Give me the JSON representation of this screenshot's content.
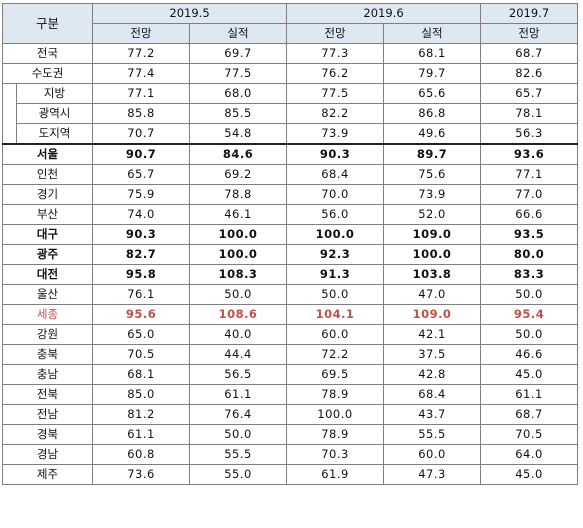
{
  "header": {
    "corner": "구분",
    "periods": [
      "2019.5",
      "2019.6",
      "2019.7"
    ],
    "sub": [
      "전망",
      "실적",
      "전망",
      "실적",
      "전망"
    ]
  },
  "rows": [
    {
      "label": "전국",
      "values": [
        "77.2",
        "69.7",
        "77.3",
        "68.1",
        "68.7"
      ]
    },
    {
      "label": "수도권",
      "values": [
        "77.4",
        "77.5",
        "76.2",
        "79.7",
        "82.6"
      ]
    },
    {
      "label": "지방",
      "values": [
        "77.1",
        "68.0",
        "77.5",
        "65.6",
        "65.7"
      ]
    },
    {
      "label": "광역시",
      "values": [
        "85.8",
        "85.5",
        "82.2",
        "86.8",
        "78.1"
      ]
    },
    {
      "label": "도지역",
      "values": [
        "70.7",
        "54.8",
        "73.9",
        "49.6",
        "56.3"
      ]
    },
    {
      "label": "서울",
      "values": [
        "90.7",
        "84.6",
        "90.3",
        "89.7",
        "93.6"
      ]
    },
    {
      "label": "인천",
      "values": [
        "65.7",
        "69.2",
        "68.4",
        "75.6",
        "77.1"
      ]
    },
    {
      "label": "경기",
      "values": [
        "75.9",
        "78.8",
        "70.0",
        "73.9",
        "77.0"
      ]
    },
    {
      "label": "부산",
      "values": [
        "74.0",
        "46.1",
        "56.0",
        "52.0",
        "66.6"
      ]
    },
    {
      "label": "대구",
      "values": [
        "90.3",
        "100.0",
        "100.0",
        "109.0",
        "93.5"
      ]
    },
    {
      "label": "광주",
      "values": [
        "82.7",
        "100.0",
        "92.3",
        "100.0",
        "80.0"
      ]
    },
    {
      "label": "대전",
      "values": [
        "95.8",
        "108.3",
        "91.3",
        "103.8",
        "83.3"
      ]
    },
    {
      "label": "울산",
      "values": [
        "76.1",
        "50.0",
        "50.0",
        "47.0",
        "50.0"
      ]
    },
    {
      "label": "세종",
      "values": [
        "95.6",
        "108.6",
        "104.1",
        "109.0",
        "95.4"
      ]
    },
    {
      "label": "강원",
      "values": [
        "65.0",
        "40.0",
        "60.0",
        "42.1",
        "50.0"
      ]
    },
    {
      "label": "충북",
      "values": [
        "70.5",
        "44.4",
        "72.2",
        "37.5",
        "46.6"
      ]
    },
    {
      "label": "충남",
      "values": [
        "68.1",
        "56.5",
        "69.5",
        "42.8",
        "45.0"
      ]
    },
    {
      "label": "전북",
      "values": [
        "85.0",
        "61.1",
        "78.9",
        "68.4",
        "61.1"
      ]
    },
    {
      "label": "전남",
      "values": [
        "81.2",
        "76.4",
        "100.0",
        "43.7",
        "68.7"
      ]
    },
    {
      "label": "경북",
      "values": [
        "61.1",
        "50.0",
        "78.9",
        "55.5",
        "70.5"
      ]
    },
    {
      "label": "경남",
      "values": [
        "60.8",
        "55.5",
        "70.3",
        "60.0",
        "64.0"
      ]
    },
    {
      "label": "제주",
      "values": [
        "73.6",
        "55.0",
        "61.9",
        "47.3",
        "45.0"
      ]
    }
  ],
  "colors": {
    "header_bg": "#dde8f3",
    "highlight_text": "#c0504d",
    "border": "#7f7f7f"
  }
}
